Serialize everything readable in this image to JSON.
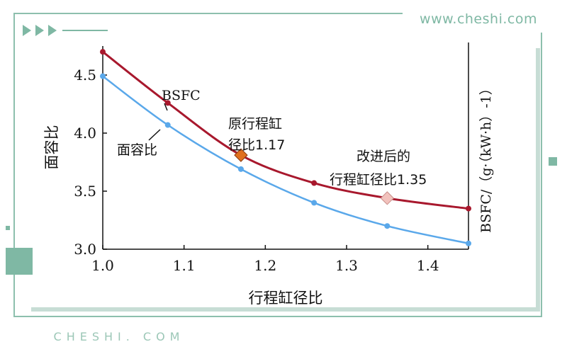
{
  "brand": {
    "top_url": "www.cheshi.com",
    "bottom_url": "CHESHI. COM"
  },
  "colors": {
    "bsfc_line": "#a8182d",
    "area_ratio_line": "#5aa8ea",
    "frame_accent": "#7fb8a4",
    "marker_original": "#e0701e",
    "marker_improved": "#f2c2bd"
  },
  "chart_data": {
    "type": "line",
    "xlabel": "行程缸径比",
    "ylabel_left": "面容比",
    "ylabel_right": "BSFC/（g·（kW·h）-1）",
    "xlim": [
      1.0,
      1.45
    ],
    "ylim": [
      3.0,
      4.75
    ],
    "x_ticks": [
      "1.0",
      "1.1",
      "1.2",
      "1.3",
      "1.4"
    ],
    "y_ticks": [
      "3.0",
      "3.5",
      "4.0",
      "4.5"
    ],
    "grid": false,
    "series": [
      {
        "name": "BSFC",
        "points": [
          [
            1.0,
            4.7
          ],
          [
            1.08,
            4.26
          ],
          [
            1.17,
            3.81
          ],
          [
            1.26,
            3.57
          ],
          [
            1.35,
            3.44
          ],
          [
            1.45,
            3.35
          ]
        ]
      },
      {
        "name": "面容比",
        "points": [
          [
            1.0,
            4.49
          ],
          [
            1.08,
            4.07
          ],
          [
            1.17,
            3.69
          ],
          [
            1.26,
            3.4
          ],
          [
            1.35,
            3.2
          ],
          [
            1.45,
            3.05
          ]
        ]
      }
    ],
    "annotations": [
      {
        "id": "orig",
        "text_line1": "原行程缸",
        "text_line2": "径比1.17",
        "x": 1.17,
        "y": 3.81
      },
      {
        "id": "new",
        "text_line1": "改进后的",
        "text_line2": "行程缸径比1.35",
        "x": 1.35,
        "y": 3.44
      }
    ]
  }
}
